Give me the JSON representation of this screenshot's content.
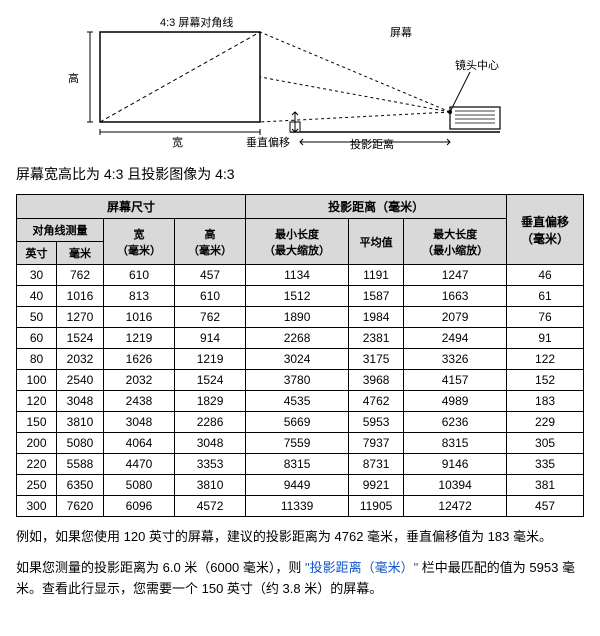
{
  "diagram": {
    "label_diag": "4:3 屏幕对角线",
    "label_screen": "屏幕",
    "label_lens": "镜头中心",
    "label_height": "高",
    "label_width": "宽",
    "label_vshift": "垂直偏移",
    "label_dist": "投影距离",
    "colors": {
      "line": "#000000",
      "dash": "#000000"
    }
  },
  "subtitle": "屏幕宽高比为 4:3 且投影图像为 4:3",
  "headers": {
    "screen_size": "屏幕尺寸",
    "proj_dist": "投影距离（毫米）",
    "v_offset": "垂直偏移\n（毫米）",
    "diag_measure": "对角线测量",
    "width": "宽\n（毫米）",
    "height": "高\n（毫米）",
    "min_len": "最小长度\n（最大缩放）",
    "avg": "平均值",
    "max_len": "最大长度\n（最小缩放）",
    "inch": "英寸",
    "mm": "毫米"
  },
  "rows": [
    [
      "30",
      "762",
      "610",
      "457",
      "1134",
      "1191",
      "1247",
      "46"
    ],
    [
      "40",
      "1016",
      "813",
      "610",
      "1512",
      "1587",
      "1663",
      "61"
    ],
    [
      "50",
      "1270",
      "1016",
      "762",
      "1890",
      "1984",
      "2079",
      "76"
    ],
    [
      "60",
      "1524",
      "1219",
      "914",
      "2268",
      "2381",
      "2494",
      "91"
    ],
    [
      "80",
      "2032",
      "1626",
      "1219",
      "3024",
      "3175",
      "3326",
      "122"
    ],
    [
      "100",
      "2540",
      "2032",
      "1524",
      "3780",
      "3968",
      "4157",
      "152"
    ],
    [
      "120",
      "3048",
      "2438",
      "1829",
      "4535",
      "4762",
      "4989",
      "183"
    ],
    [
      "150",
      "3810",
      "3048",
      "2286",
      "5669",
      "5953",
      "6236",
      "229"
    ],
    [
      "200",
      "5080",
      "4064",
      "3048",
      "7559",
      "7937",
      "8315",
      "305"
    ],
    [
      "220",
      "5588",
      "4470",
      "3353",
      "8315",
      "8731",
      "9146",
      "335"
    ],
    [
      "250",
      "6350",
      "5080",
      "3810",
      "9449",
      "9921",
      "10394",
      "381"
    ],
    [
      "300",
      "7620",
      "6096",
      "4572",
      "11339",
      "11905",
      "12472",
      "457"
    ]
  ],
  "para1": "例如，如果您使用 120 英寸的屏幕，建议的投影距离为 4762 毫米，垂直偏移值为 183 毫米。",
  "para2a": "如果您测量的投影距离为 6.0 米（6000 毫米），则 ",
  "para2b": "\"投影距离（毫米）\"",
  "para2c": " 栏中最匹配的值为 5953 毫米。查看此行显示，您需要一个 150 英寸（约 3.8 米）的屏幕。"
}
